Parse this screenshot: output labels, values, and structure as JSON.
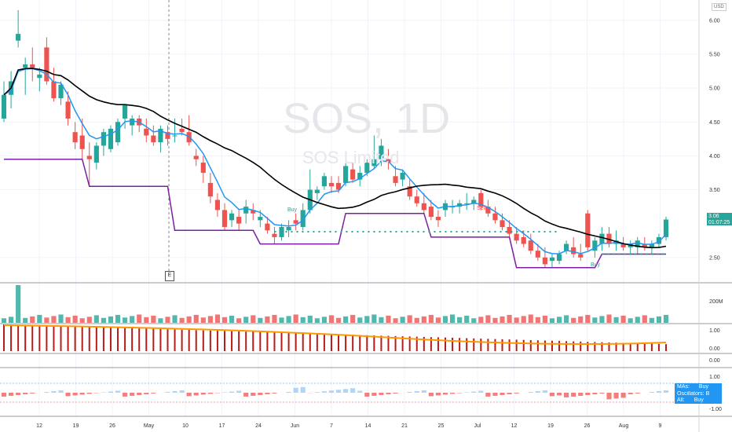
{
  "watermark": {
    "symbol": "SOS, 1D",
    "subtitle": "SOS Limited"
  },
  "currency": "USD",
  "last_price": {
    "value": "3.06",
    "countdown": "01:07:25"
  },
  "earnings_marker": "E",
  "signals": {
    "buy_1": "Buy",
    "sell_1": "Sell",
    "buy_2": "Buy"
  },
  "price_axis": [
    "6.00",
    "5.50",
    "5.00",
    "4.50",
    "4.00",
    "3.50",
    "2.50"
  ],
  "volume_axis": [
    "200M"
  ],
  "sub_axis_1": [
    "1.00",
    "0.00"
  ],
  "sub_axis_2": [
    "0.00"
  ],
  "sub_axis_3": [
    "1.00",
    "0.00",
    "-1.00"
  ],
  "time_axis": [
    "12",
    "19",
    "26",
    "May",
    "10",
    "17",
    "24",
    "Jun",
    "7",
    "14",
    "21",
    "25",
    "Jul",
    "12",
    "19",
    "26",
    "Aug",
    "9"
  ],
  "legend": {
    "mas": "MAs:",
    "mas_val": "Buy",
    "osc": "Oscillators:",
    "osc_val": "B",
    "all": "All:",
    "all_val": "Buy"
  },
  "colors": {
    "up": "#26a69a",
    "down": "#ef5350",
    "ema_fast": "#2196f3",
    "ma_slow": "#000000",
    "channel": "#7b1fa2",
    "volume_ma": "#b39ddb",
    "orange_line": "#ff9800",
    "osc_bar": "#b71c1c"
  },
  "chart_data": {
    "type": "candlestick",
    "symbol": "SOS",
    "interval": "1D",
    "ylim": [
      2.15,
      6.3
    ],
    "ohlc": [
      [
        4.55,
        5.1,
        4.5,
        4.9
      ],
      [
        4.9,
        5.25,
        4.7,
        5.1
      ],
      [
        5.7,
        6.15,
        5.6,
        5.8
      ],
      [
        5.3,
        5.45,
        4.9,
        5.35
      ],
      [
        5.35,
        5.6,
        5.1,
        5.3
      ],
      [
        5.15,
        5.3,
        4.95,
        5.2
      ],
      [
        5.6,
        5.75,
        5.05,
        5.1
      ],
      [
        5.1,
        5.3,
        4.8,
        4.85
      ],
      [
        4.85,
        5.1,
        4.75,
        5.05
      ],
      [
        4.8,
        4.95,
        4.45,
        4.55
      ],
      [
        4.35,
        4.5,
        4.1,
        4.2
      ],
      [
        4.3,
        4.55,
        3.95,
        4.1
      ],
      [
        4.0,
        4.2,
        3.55,
        3.95
      ],
      [
        3.9,
        4.2,
        3.8,
        4.15
      ],
      [
        4.15,
        4.4,
        4.0,
        4.35
      ],
      [
        4.1,
        4.45,
        4.05,
        4.4
      ],
      [
        4.2,
        4.55,
        4.15,
        4.5
      ],
      [
        4.55,
        4.75,
        4.4,
        4.75
      ],
      [
        4.45,
        4.6,
        4.3,
        4.55
      ],
      [
        4.55,
        4.6,
        4.35,
        4.45
      ],
      [
        4.4,
        4.55,
        4.2,
        4.3
      ],
      [
        4.3,
        4.45,
        4.15,
        4.2
      ],
      [
        4.2,
        4.45,
        4.05,
        4.4
      ],
      [
        4.35,
        4.45,
        4.15,
        4.25
      ],
      [
        4.3,
        4.55,
        4.2,
        4.3
      ],
      [
        4.4,
        4.55,
        4.3,
        4.35
      ],
      [
        4.35,
        4.6,
        4.15,
        4.2
      ],
      [
        4.0,
        4.1,
        3.85,
        3.95
      ],
      [
        3.9,
        4.0,
        3.6,
        3.75
      ],
      [
        3.6,
        3.75,
        3.3,
        3.4
      ],
      [
        3.35,
        3.45,
        3.1,
        3.2
      ],
      [
        3.2,
        3.3,
        2.9,
        2.95
      ],
      [
        3.05,
        3.2,
        2.95,
        3.15
      ],
      [
        3.1,
        3.2,
        2.9,
        3.0
      ],
      [
        3.15,
        3.35,
        3.0,
        3.25
      ],
      [
        3.2,
        3.3,
        3.05,
        3.15
      ],
      [
        3.05,
        3.2,
        2.95,
        3.1
      ],
      [
        3.0,
        3.1,
        2.85,
        2.9
      ],
      [
        2.85,
        2.95,
        2.7,
        2.8
      ],
      [
        2.8,
        3.0,
        2.75,
        2.95
      ],
      [
        2.9,
        3.05,
        2.8,
        2.95
      ],
      [
        3.05,
        3.15,
        2.9,
        3.0
      ],
      [
        2.95,
        3.3,
        2.9,
        3.2
      ],
      [
        3.2,
        3.8,
        3.15,
        3.5
      ],
      [
        3.45,
        3.55,
        3.35,
        3.5
      ],
      [
        3.55,
        3.75,
        3.5,
        3.7
      ],
      [
        3.6,
        3.7,
        3.45,
        3.55
      ],
      [
        3.6,
        3.7,
        3.45,
        3.5
      ],
      [
        3.6,
        3.9,
        3.55,
        3.85
      ],
      [
        3.8,
        3.9,
        3.6,
        3.65
      ],
      [
        3.65,
        3.85,
        3.55,
        3.75
      ],
      [
        3.75,
        3.95,
        3.7,
        3.9
      ],
      [
        3.85,
        4.3,
        3.8,
        3.95
      ],
      [
        3.95,
        4.25,
        3.85,
        4.15
      ],
      [
        3.95,
        4.1,
        3.8,
        3.9
      ],
      [
        3.7,
        3.85,
        3.55,
        3.6
      ],
      [
        3.65,
        3.8,
        3.55,
        3.75
      ],
      [
        3.55,
        3.65,
        3.35,
        3.4
      ],
      [
        3.4,
        3.5,
        3.25,
        3.3
      ],
      [
        3.3,
        3.45,
        3.15,
        3.2
      ],
      [
        3.25,
        3.35,
        3.05,
        3.1
      ],
      [
        3.1,
        3.2,
        2.95,
        3.05
      ],
      [
        3.2,
        3.35,
        3.1,
        3.3
      ],
      [
        3.25,
        3.35,
        3.15,
        3.25
      ],
      [
        3.25,
        3.35,
        3.15,
        3.3
      ],
      [
        3.3,
        3.45,
        3.2,
        3.3
      ],
      [
        3.3,
        3.4,
        3.2,
        3.35
      ],
      [
        3.45,
        3.5,
        3.2,
        3.25
      ],
      [
        3.25,
        3.35,
        3.1,
        3.15
      ],
      [
        3.15,
        3.25,
        3.0,
        3.05
      ],
      [
        3.05,
        3.15,
        2.9,
        2.95
      ],
      [
        2.95,
        3.05,
        2.8,
        2.85
      ],
      [
        2.85,
        2.95,
        2.7,
        2.75
      ],
      [
        2.8,
        2.9,
        2.65,
        2.7
      ],
      [
        2.75,
        2.85,
        2.55,
        2.6
      ],
      [
        2.6,
        2.7,
        2.45,
        2.5
      ],
      [
        2.5,
        2.65,
        2.35,
        2.4
      ],
      [
        2.45,
        2.55,
        2.35,
        2.5
      ],
      [
        2.45,
        2.6,
        2.4,
        2.55
      ],
      [
        2.6,
        2.75,
        2.55,
        2.7
      ],
      [
        2.65,
        2.8,
        2.5,
        2.55
      ],
      [
        2.55,
        2.7,
        2.45,
        2.5
      ],
      [
        3.15,
        3.2,
        2.6,
        2.65
      ],
      [
        2.6,
        2.8,
        2.5,
        2.75
      ],
      [
        2.7,
        2.95,
        2.6,
        2.85
      ],
      [
        2.85,
        2.95,
        2.65,
        2.7
      ],
      [
        2.7,
        2.9,
        2.6,
        2.75
      ],
      [
        2.7,
        2.8,
        2.6,
        2.65
      ],
      [
        2.65,
        2.75,
        2.55,
        2.7
      ],
      [
        2.65,
        2.8,
        2.55,
        2.75
      ],
      [
        2.7,
        2.8,
        2.6,
        2.65
      ],
      [
        2.65,
        2.75,
        2.55,
        2.7
      ],
      [
        2.7,
        2.85,
        2.65,
        2.8
      ],
      [
        2.8,
        3.1,
        2.75,
        3.06
      ]
    ]
  }
}
